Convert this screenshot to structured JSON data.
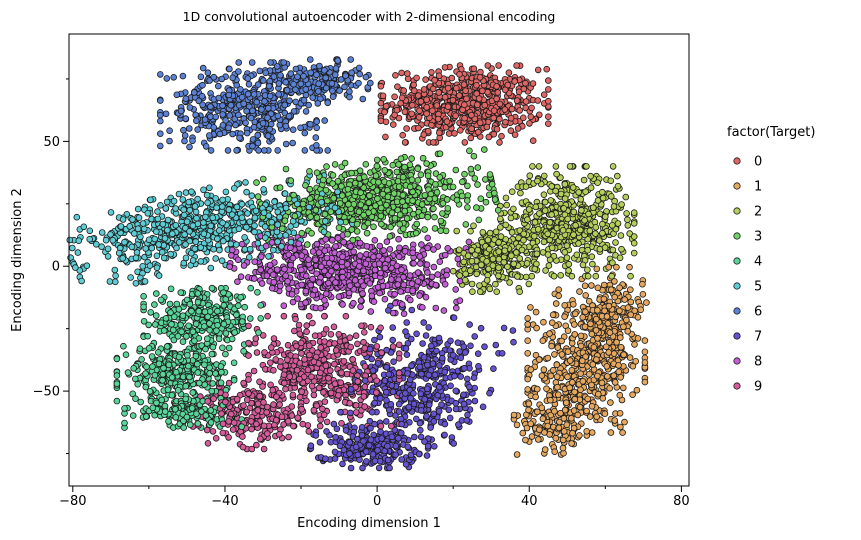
{
  "chart_data": {
    "type": "scatter",
    "title": "1D convolutional autoencoder with 2-dimensional encoding",
    "xlabel": "Encoding dimension 1",
    "ylabel": "Encoding dimension 2",
    "xlim": [
      -81,
      82
    ],
    "ylim": [
      -88,
      93
    ],
    "xticks": [
      -80,
      -40,
      0,
      40,
      80
    ],
    "xtick_labels": [
      "−80",
      "−40",
      "0",
      "40",
      "80"
    ],
    "yticks": [
      -50,
      0,
      50
    ],
    "ytick_labels": [
      "−50",
      "0",
      "50"
    ],
    "xminor": [
      -60,
      -20,
      20,
      60
    ],
    "yminor": [
      -75,
      -25,
      25,
      75
    ],
    "grid": false,
    "legend": {
      "title": "factor(Target)",
      "placement": "right-outside"
    },
    "series": [
      {
        "name": "0",
        "color": "#e06666",
        "clusters": [
          {
            "cx": 23,
            "cy": 65,
            "sx": 10,
            "sy": 7,
            "n": 620,
            "rot": 0
          }
        ]
      },
      {
        "name": "1",
        "color": "#e5a85e",
        "clusters": [
          {
            "cx": 55,
            "cy": -38,
            "sx": 7,
            "sy": 13,
            "n": 420,
            "rot": 0
          },
          {
            "cx": 47,
            "cy": -60,
            "sx": 5,
            "sy": 7,
            "n": 160,
            "rot": 0
          },
          {
            "cx": 62,
            "cy": -18,
            "sx": 4,
            "sy": 8,
            "n": 140,
            "rot": 0
          }
        ]
      },
      {
        "name": "2",
        "color": "#b5d05a",
        "clusters": [
          {
            "cx": 50,
            "cy": 18,
            "sx": 8,
            "sy": 10,
            "n": 520,
            "rot": 0
          },
          {
            "cx": 31,
            "cy": 3,
            "sx": 5,
            "sy": 6,
            "n": 230,
            "rot": 0
          }
        ]
      },
      {
        "name": "3",
        "color": "#6fd465",
        "clusters": [
          {
            "cx": 0,
            "cy": 27,
            "sx": 14,
            "sy": 7,
            "n": 680,
            "rot": 0.15
          }
        ]
      },
      {
        "name": "4",
        "color": "#58d69a",
        "clusters": [
          {
            "cx": -46,
            "cy": -22,
            "sx": 7,
            "sy": 6,
            "n": 320,
            "rot": 0
          },
          {
            "cx": -53,
            "cy": -43,
            "sx": 7,
            "sy": 5,
            "n": 260,
            "rot": 0
          },
          {
            "cx": -51,
            "cy": -58,
            "sx": 7,
            "sy": 3,
            "n": 140,
            "rot": 0
          }
        ]
      },
      {
        "name": "5",
        "color": "#5ccdd4",
        "clusters": [
          {
            "cx": -45,
            "cy": 15,
            "sx": 17,
            "sy": 7,
            "n": 650,
            "rot": 0.3
          }
        ]
      },
      {
        "name": "6",
        "color": "#5c82d6",
        "clusters": [
          {
            "cx": -35,
            "cy": 64,
            "sx": 10,
            "sy": 8,
            "n": 440,
            "rot": 0
          },
          {
            "cx": -15,
            "cy": 74,
            "sx": 6,
            "sy": 4,
            "n": 160,
            "rot": 0
          }
        ]
      },
      {
        "name": "7",
        "color": "#6552d0",
        "clusters": [
          {
            "cx": 12,
            "cy": -48,
            "sx": 8,
            "sy": 13,
            "n": 420,
            "rot": -0.3
          },
          {
            "cx": -2,
            "cy": -72,
            "sx": 7,
            "sy": 4,
            "n": 200,
            "rot": 0
          }
        ]
      },
      {
        "name": "8",
        "color": "#c35ed6",
        "clusters": [
          {
            "cx": -8,
            "cy": -2,
            "sx": 14,
            "sy": 7,
            "n": 680,
            "rot": -0.1
          }
        ]
      },
      {
        "name": "9",
        "color": "#d65b9b",
        "clusters": [
          {
            "cx": -14,
            "cy": -42,
            "sx": 9,
            "sy": 10,
            "n": 430,
            "rot": 0
          },
          {
            "cx": -33,
            "cy": -60,
            "sx": 7,
            "sy": 6,
            "n": 210,
            "rot": 0
          }
        ]
      }
    ]
  }
}
